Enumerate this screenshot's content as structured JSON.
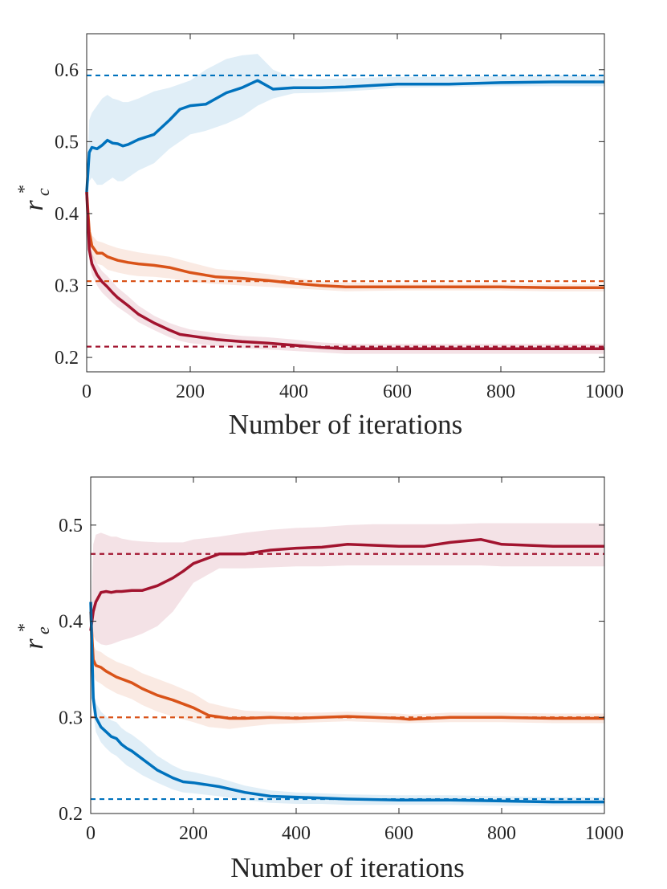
{
  "colors": {
    "blue": "#0072bd",
    "orange": "#d95319",
    "red": "#a2142f",
    "axis": "#262626"
  },
  "chart_data": [
    {
      "type": "line",
      "xlabel": "Number of iterations",
      "ylabel_main": "r",
      "ylabel_super": "*",
      "ylabel_sub": "c",
      "xlim": [
        0,
        1000
      ],
      "ylim": [
        0.18,
        0.65
      ],
      "xticks": [
        "0",
        "200",
        "400",
        "600",
        "800",
        "1000"
      ],
      "xtick_values": [
        0,
        200,
        400,
        600,
        800,
        1000
      ],
      "yticks": [
        "0.2",
        "0.3",
        "0.4",
        "0.5",
        "0.6"
      ],
      "ytick_values": [
        0.2,
        0.3,
        0.4,
        0.5,
        0.6
      ],
      "series": [
        {
          "name": "blue",
          "color": "blue",
          "reference": 0.592,
          "x": [
            0,
            5,
            10,
            20,
            30,
            40,
            50,
            60,
            70,
            80,
            100,
            130,
            160,
            180,
            200,
            230,
            270,
            300,
            330,
            360,
            400,
            450,
            500,
            550,
            600,
            700,
            800,
            900,
            1000
          ],
          "y": [
            0.43,
            0.485,
            0.492,
            0.49,
            0.495,
            0.502,
            0.498,
            0.497,
            0.494,
            0.496,
            0.503,
            0.51,
            0.53,
            0.545,
            0.55,
            0.552,
            0.568,
            0.575,
            0.585,
            0.573,
            0.575,
            0.575,
            0.576,
            0.578,
            0.58,
            0.58,
            0.582,
            0.583,
            0.583
          ],
          "lower": [
            0.43,
            0.445,
            0.45,
            0.44,
            0.44,
            0.445,
            0.45,
            0.445,
            0.445,
            0.45,
            0.46,
            0.47,
            0.49,
            0.5,
            0.51,
            0.515,
            0.525,
            0.535,
            0.55,
            0.56,
            0.567,
            0.568,
            0.57,
            0.572,
            0.575,
            0.576,
            0.577,
            0.577,
            0.577
          ],
          "upper": [
            0.43,
            0.53,
            0.54,
            0.55,
            0.56,
            0.565,
            0.56,
            0.558,
            0.555,
            0.555,
            0.56,
            0.57,
            0.575,
            0.58,
            0.585,
            0.6,
            0.615,
            0.62,
            0.622,
            0.6,
            0.588,
            0.587,
            0.588,
            0.589,
            0.59,
            0.59,
            0.591,
            0.592,
            0.592
          ]
        },
        {
          "name": "orange",
          "color": "orange",
          "reference": 0.306,
          "x": [
            0,
            5,
            10,
            20,
            30,
            40,
            60,
            80,
            100,
            130,
            160,
            200,
            250,
            300,
            350,
            400,
            450,
            500,
            600,
            700,
            800,
            900,
            1000
          ],
          "y": [
            0.43,
            0.375,
            0.355,
            0.345,
            0.345,
            0.34,
            0.335,
            0.332,
            0.33,
            0.328,
            0.325,
            0.318,
            0.312,
            0.31,
            0.307,
            0.303,
            0.3,
            0.298,
            0.298,
            0.298,
            0.298,
            0.297,
            0.297
          ],
          "lower": [
            0.43,
            0.36,
            0.34,
            0.33,
            0.328,
            0.322,
            0.318,
            0.315,
            0.313,
            0.312,
            0.31,
            0.305,
            0.302,
            0.3,
            0.298,
            0.296,
            0.294,
            0.292,
            0.293,
            0.293,
            0.293,
            0.292,
            0.292
          ],
          "upper": [
            0.43,
            0.39,
            0.37,
            0.362,
            0.36,
            0.357,
            0.352,
            0.349,
            0.346,
            0.343,
            0.34,
            0.332,
            0.323,
            0.32,
            0.316,
            0.311,
            0.306,
            0.304,
            0.303,
            0.303,
            0.303,
            0.302,
            0.302
          ]
        },
        {
          "name": "red",
          "color": "red",
          "reference": 0.215,
          "x": [
            0,
            5,
            10,
            20,
            30,
            40,
            50,
            60,
            80,
            100,
            130,
            160,
            180,
            200,
            250,
            300,
            350,
            400,
            450,
            500,
            600,
            700,
            800,
            900,
            1000
          ],
          "y": [
            0.43,
            0.35,
            0.33,
            0.315,
            0.305,
            0.298,
            0.29,
            0.283,
            0.272,
            0.26,
            0.248,
            0.238,
            0.232,
            0.23,
            0.225,
            0.222,
            0.22,
            0.217,
            0.214,
            0.212,
            0.212,
            0.212,
            0.212,
            0.212,
            0.212
          ],
          "lower": [
            0.43,
            0.335,
            0.315,
            0.3,
            0.29,
            0.283,
            0.276,
            0.27,
            0.26,
            0.249,
            0.238,
            0.228,
            0.223,
            0.22,
            0.216,
            0.213,
            0.211,
            0.209,
            0.207,
            0.205,
            0.205,
            0.205,
            0.205,
            0.205,
            0.205
          ],
          "upper": [
            0.43,
            0.365,
            0.345,
            0.33,
            0.32,
            0.313,
            0.305,
            0.297,
            0.285,
            0.272,
            0.258,
            0.248,
            0.243,
            0.239,
            0.234,
            0.23,
            0.228,
            0.225,
            0.221,
            0.219,
            0.219,
            0.219,
            0.219,
            0.219,
            0.219
          ]
        }
      ]
    },
    {
      "type": "line",
      "xlabel": "Number of iterations",
      "ylabel_main": "r",
      "ylabel_super": "*",
      "ylabel_sub": "e",
      "xlim": [
        0,
        1000
      ],
      "ylim": [
        0.2,
        0.55
      ],
      "xticks": [
        "0",
        "200",
        "400",
        "600",
        "800",
        "1000"
      ],
      "xtick_values": [
        0,
        200,
        400,
        600,
        800,
        1000
      ],
      "yticks": [
        "0.2",
        "0.3",
        "0.4",
        "0.5"
      ],
      "ytick_values": [
        0.2,
        0.3,
        0.4,
        0.5
      ],
      "series": [
        {
          "name": "red",
          "color": "red",
          "reference": 0.47,
          "x": [
            0,
            5,
            10,
            20,
            30,
            40,
            50,
            60,
            80,
            100,
            130,
            160,
            180,
            200,
            250,
            300,
            350,
            400,
            450,
            500,
            550,
            600,
            650,
            700,
            760,
            800,
            900,
            1000
          ],
          "y": [
            0.39,
            0.41,
            0.42,
            0.43,
            0.431,
            0.43,
            0.431,
            0.431,
            0.432,
            0.432,
            0.437,
            0.445,
            0.452,
            0.46,
            0.47,
            0.47,
            0.474,
            0.476,
            0.477,
            0.48,
            0.479,
            0.478,
            0.478,
            0.482,
            0.485,
            0.48,
            0.478,
            0.478
          ],
          "lower": [
            0.39,
            0.385,
            0.38,
            0.376,
            0.375,
            0.376,
            0.378,
            0.38,
            0.383,
            0.387,
            0.395,
            0.41,
            0.425,
            0.44,
            0.455,
            0.455,
            0.456,
            0.457,
            0.457,
            0.458,
            0.458,
            0.458,
            0.458,
            0.458,
            0.458,
            0.457,
            0.457,
            0.457
          ],
          "upper": [
            0.39,
            0.48,
            0.49,
            0.492,
            0.49,
            0.488,
            0.488,
            0.486,
            0.484,
            0.483,
            0.482,
            0.482,
            0.482,
            0.485,
            0.488,
            0.492,
            0.495,
            0.497,
            0.498,
            0.5,
            0.501,
            0.501,
            0.501,
            0.501,
            0.502,
            0.502,
            0.502,
            0.502
          ]
        },
        {
          "name": "orange",
          "color": "orange",
          "reference": 0.3,
          "x": [
            0,
            5,
            10,
            20,
            30,
            40,
            50,
            60,
            80,
            100,
            130,
            160,
            200,
            230,
            270,
            300,
            350,
            400,
            450,
            500,
            550,
            600,
            620,
            700,
            800,
            900,
            1000
          ],
          "y": [
            0.41,
            0.36,
            0.354,
            0.352,
            0.348,
            0.345,
            0.342,
            0.34,
            0.336,
            0.33,
            0.323,
            0.318,
            0.31,
            0.302,
            0.299,
            0.299,
            0.3,
            0.299,
            0.3,
            0.301,
            0.3,
            0.299,
            0.298,
            0.3,
            0.3,
            0.299,
            0.299
          ],
          "lower": [
            0.41,
            0.345,
            0.338,
            0.335,
            0.331,
            0.328,
            0.325,
            0.323,
            0.319,
            0.313,
            0.306,
            0.301,
            0.295,
            0.29,
            0.288,
            0.29,
            0.293,
            0.294,
            0.295,
            0.296,
            0.295,
            0.294,
            0.294,
            0.295,
            0.295,
            0.294,
            0.294
          ],
          "upper": [
            0.41,
            0.375,
            0.37,
            0.368,
            0.364,
            0.361,
            0.358,
            0.356,
            0.352,
            0.346,
            0.34,
            0.334,
            0.325,
            0.315,
            0.31,
            0.307,
            0.306,
            0.305,
            0.305,
            0.306,
            0.305,
            0.304,
            0.303,
            0.305,
            0.305,
            0.304,
            0.304
          ]
        },
        {
          "name": "blue",
          "color": "blue",
          "reference": 0.215,
          "x": [
            0,
            5,
            10,
            20,
            30,
            40,
            50,
            60,
            70,
            80,
            100,
            130,
            160,
            180,
            200,
            250,
            300,
            350,
            400,
            450,
            500,
            600,
            700,
            800,
            900,
            1000
          ],
          "y": [
            0.42,
            0.32,
            0.3,
            0.29,
            0.285,
            0.28,
            0.278,
            0.272,
            0.268,
            0.265,
            0.257,
            0.245,
            0.237,
            0.233,
            0.232,
            0.228,
            0.222,
            0.218,
            0.217,
            0.216,
            0.215,
            0.214,
            0.214,
            0.213,
            0.212,
            0.212
          ],
          "lower": [
            0.42,
            0.305,
            0.285,
            0.274,
            0.268,
            0.263,
            0.26,
            0.255,
            0.25,
            0.247,
            0.24,
            0.232,
            0.225,
            0.222,
            0.221,
            0.218,
            0.214,
            0.211,
            0.21,
            0.21,
            0.209,
            0.209,
            0.209,
            0.208,
            0.208,
            0.208
          ],
          "upper": [
            0.42,
            0.335,
            0.315,
            0.306,
            0.301,
            0.297,
            0.295,
            0.289,
            0.285,
            0.282,
            0.274,
            0.26,
            0.25,
            0.245,
            0.243,
            0.237,
            0.229,
            0.224,
            0.222,
            0.221,
            0.22,
            0.219,
            0.219,
            0.218,
            0.217,
            0.217
          ]
        }
      ]
    }
  ]
}
